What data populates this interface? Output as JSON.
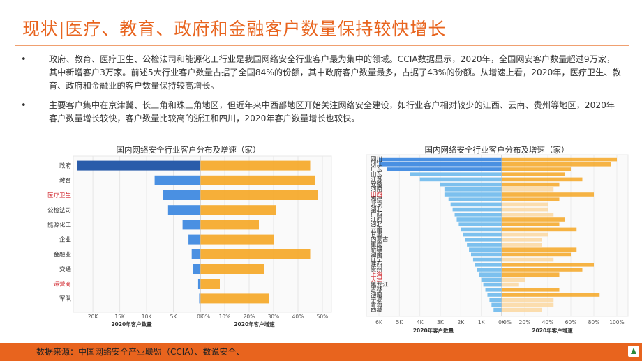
{
  "header": {
    "title": "现状|医疗、教育、政府和金融客户数量保持较快增长"
  },
  "bullets": [
    "政府、教育、医疗卫生、公检法司和能源化工行业是我国网络安全行业客户最为集中的领域。CCIA数据显示，2020年，全国网安客户数量超过9万家，其中新增客户3万家。前述5大行业客户数量占据了全国84%的份额，其中政府客户数量最多，占据了43%的份额。从增速上看，2020年，医疗卫生、教育、政府和金融业的客户数量保持较高增长。",
    "主要客户集中在京津冀、长三角和珠三角地区，但近年来中西部地区开始关注网络安全建设，如行业客户相对较少的江西、云南、贵州等地区，2020年客户数量增长较快，客户数量比较高的浙江和四川，2020年客户数量增长也较快。"
  ],
  "footer": {
    "source": "数据来源：中国网络安全产业联盟（CCIA）、数说安全、"
  },
  "colors": {
    "accent": "#e8641e",
    "bar_dark_blue": "#2a5caa",
    "bar_blue": "#4a90e2",
    "bar_light_blue": "#7cc0ee",
    "bar_orange": "#f5a623",
    "bar_light_orange": "#fad7a0",
    "label_red": "#d0242b"
  },
  "chart_data": [
    {
      "type": "bar",
      "title": "国内网络安全行业客户分布及增速（家）",
      "categories": [
        "政府",
        "教育",
        "医疗卫生",
        "公检法司",
        "能源化工",
        "企业",
        "金融业",
        "交通",
        "运营商",
        "军队"
      ],
      "highlight_categories": [
        "医疗卫生",
        "运营商"
      ],
      "series": [
        {
          "name": "2020年客户数量",
          "values": [
            23000,
            8500,
            7000,
            6000,
            3300,
            2200,
            1600,
            1300,
            400,
            200
          ]
        },
        {
          "name": "2020年客户增速",
          "values": [
            45,
            47,
            48,
            31,
            24,
            30,
            45,
            26,
            8,
            28
          ]
        }
      ],
      "left_axis": {
        "label": "2020年客户数量",
        "ticks": [
          "20K",
          "15K",
          "10K",
          "5K",
          "0K"
        ],
        "range": [
          0,
          23000
        ]
      },
      "right_axis": {
        "label": "2020年客户增速",
        "ticks": [
          "0%",
          "10%",
          "20%",
          "30%",
          "40%",
          "50%"
        ],
        "range": [
          0,
          50
        ]
      }
    },
    {
      "type": "bar",
      "title": "国内网络安全行业客户分布及增速（家）",
      "categories": [
        "四川",
        "浙江",
        "广东",
        "山东",
        "江苏",
        "安徽",
        "河南",
        "山西",
        "福建",
        "北京",
        "湖北",
        "广西",
        "江西",
        "河北",
        "云南",
        "甘肃",
        "内蒙古",
        "重庆",
        "新疆",
        "湖南",
        "辽宁",
        "陕西",
        "贵州",
        "上海",
        "天津",
        "黑龙江",
        "吉林",
        "海南",
        "宁夏",
        "青海",
        "西藏"
      ],
      "highlight_categories": [
        "山西",
        "上海",
        "天津"
      ],
      "series": [
        {
          "name": "2020年客户数量",
          "values": [
            6000,
            6000,
            5600,
            4500,
            4000,
            3000,
            2800,
            2800,
            2600,
            2500,
            2400,
            2300,
            2200,
            2100,
            2000,
            1900,
            1800,
            1700,
            1600,
            1500,
            1400,
            1300,
            1200,
            1100,
            1000,
            900,
            800,
            700,
            600,
            500,
            400
          ]
        },
        {
          "name": "2020年客户增速",
          "values": [
            100,
            95,
            60,
            55,
            70,
            50,
            45,
            80,
            50,
            40,
            40,
            45,
            55,
            50,
            65,
            40,
            35,
            35,
            65,
            60,
            45,
            80,
            70,
            50,
            20,
            15,
            50,
            85,
            45,
            45,
            35
          ]
        }
      ],
      "left_axis": {
        "label": "2020年客户数量",
        "ticks": [
          "6K",
          "5K",
          "4K",
          "3K",
          "2K",
          "1K",
          "0K"
        ],
        "range": [
          0,
          6000
        ]
      },
      "right_axis": {
        "label": "2020年客户增速",
        "ticks": [
          "0%",
          "20%",
          "40%",
          "60%",
          "80%",
          "100%"
        ],
        "range": [
          0,
          100
        ]
      }
    }
  ]
}
